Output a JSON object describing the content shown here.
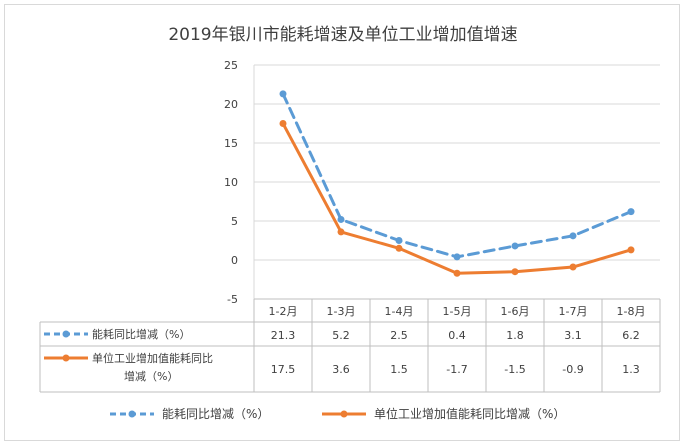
{
  "chart_data": {
    "type": "line",
    "title": "2019年银川市能耗增速及单位工业增加值增速",
    "categories": [
      "1-2月",
      "1-3月",
      "1-4月",
      "1-5月",
      "1-6月",
      "1-7月",
      "1-8月"
    ],
    "ylim": [
      -5,
      25
    ],
    "yticks": [
      25,
      20,
      15,
      10,
      5,
      0,
      -5
    ],
    "grid": true,
    "legend_position": "bottom",
    "data_table": true,
    "series": [
      {
        "name": "能耗同比增减（%）",
        "table_label": "能耗同比增减（%）",
        "color": "#5B9BD5",
        "style": "dashed",
        "values": [
          21.3,
          5.2,
          2.5,
          0.4,
          1.8,
          3.1,
          6.2
        ],
        "labels": [
          "21.3",
          "5.2",
          "2.5",
          "0.4",
          "1.8",
          "3.1",
          "6.2"
        ]
      },
      {
        "name": "单位工业增加值能耗同比增减（%）",
        "table_label_line1": "单位工业增加值能耗同比",
        "table_label_line2": "增减（%）",
        "color": "#ED7D31",
        "style": "solid",
        "values": [
          17.5,
          3.6,
          1.5,
          -1.7,
          -1.5,
          -0.9,
          1.3
        ],
        "labels": [
          "17.5",
          "3.6",
          "1.5",
          "-1.7",
          "-1.5",
          "-0.9",
          "1.3"
        ]
      }
    ]
  }
}
